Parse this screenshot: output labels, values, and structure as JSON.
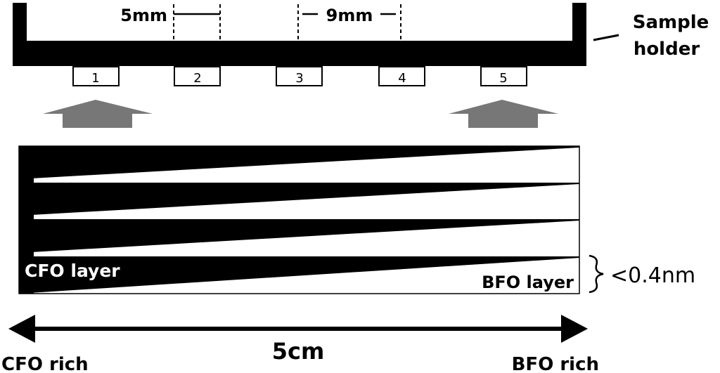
{
  "diagram": {
    "labels": {
      "sample_holder_line1": "Sample",
      "sample_holder_line2": "holder",
      "spacing_small": "5mm",
      "spacing_large": "9mm",
      "cfo_layer": "CFO layer",
      "bfo_layer": "BFO layer",
      "thickness": "<0.4nm",
      "width": "5cm",
      "cfo_rich": "CFO rich",
      "bfo_rich": "BFO rich"
    },
    "samples": [
      {
        "label": "1"
      },
      {
        "label": "2"
      },
      {
        "label": "3"
      },
      {
        "label": "4"
      },
      {
        "label": "5"
      }
    ],
    "colors": {
      "ink": "#000000",
      "arrow_gray": "#777777",
      "background": "#ffffff"
    }
  }
}
